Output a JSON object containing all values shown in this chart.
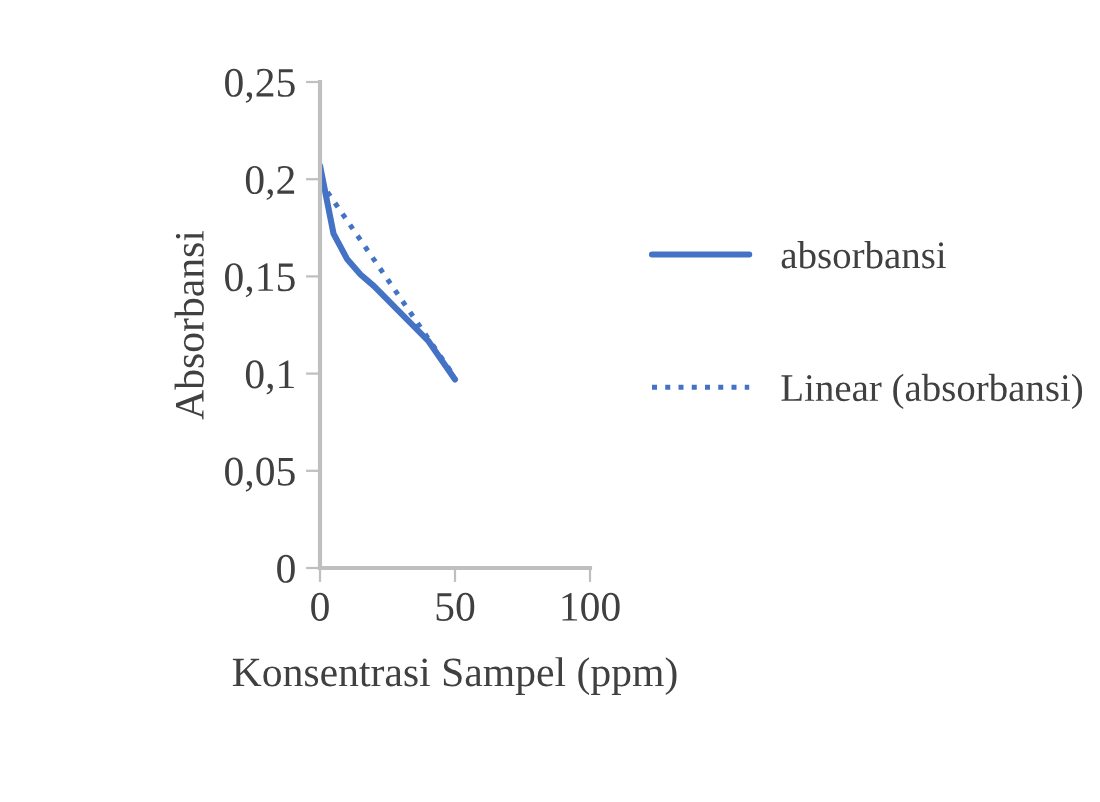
{
  "chart_data": {
    "type": "line",
    "xlabel": "Konsentrasi Sampel (ppm)",
    "ylabel": "Absorbansi",
    "x": [
      0,
      5,
      10,
      15,
      20,
      30,
      40,
      50
    ],
    "series": [
      {
        "name": "absorbansi",
        "color": "#4472c4",
        "values": [
          0.207,
          0.172,
          0.159,
          0.151,
          0.145,
          0.131,
          0.117,
          0.097
        ],
        "line_style": "solid"
      },
      {
        "name": "Linear (absorbansi)",
        "color": "#4472c4",
        "x": [
          0,
          50
        ],
        "values": [
          0.199,
          0.098
        ],
        "line_style": "dotted"
      }
    ],
    "xlim": [
      0,
      100
    ],
    "xticks": [
      0,
      50,
      100
    ],
    "ylim": [
      0,
      0.25
    ],
    "yticks": [
      {
        "value": 0,
        "label": "0"
      },
      {
        "value": 0.05,
        "label": "0,05"
      },
      {
        "value": 0.1,
        "label": "0,1"
      },
      {
        "value": 0.15,
        "label": "0,15"
      },
      {
        "value": 0.2,
        "label": "0,2"
      },
      {
        "value": 0.25,
        "label": "0,25"
      }
    ],
    "grid": false,
    "legend": "right",
    "marker": "none"
  }
}
